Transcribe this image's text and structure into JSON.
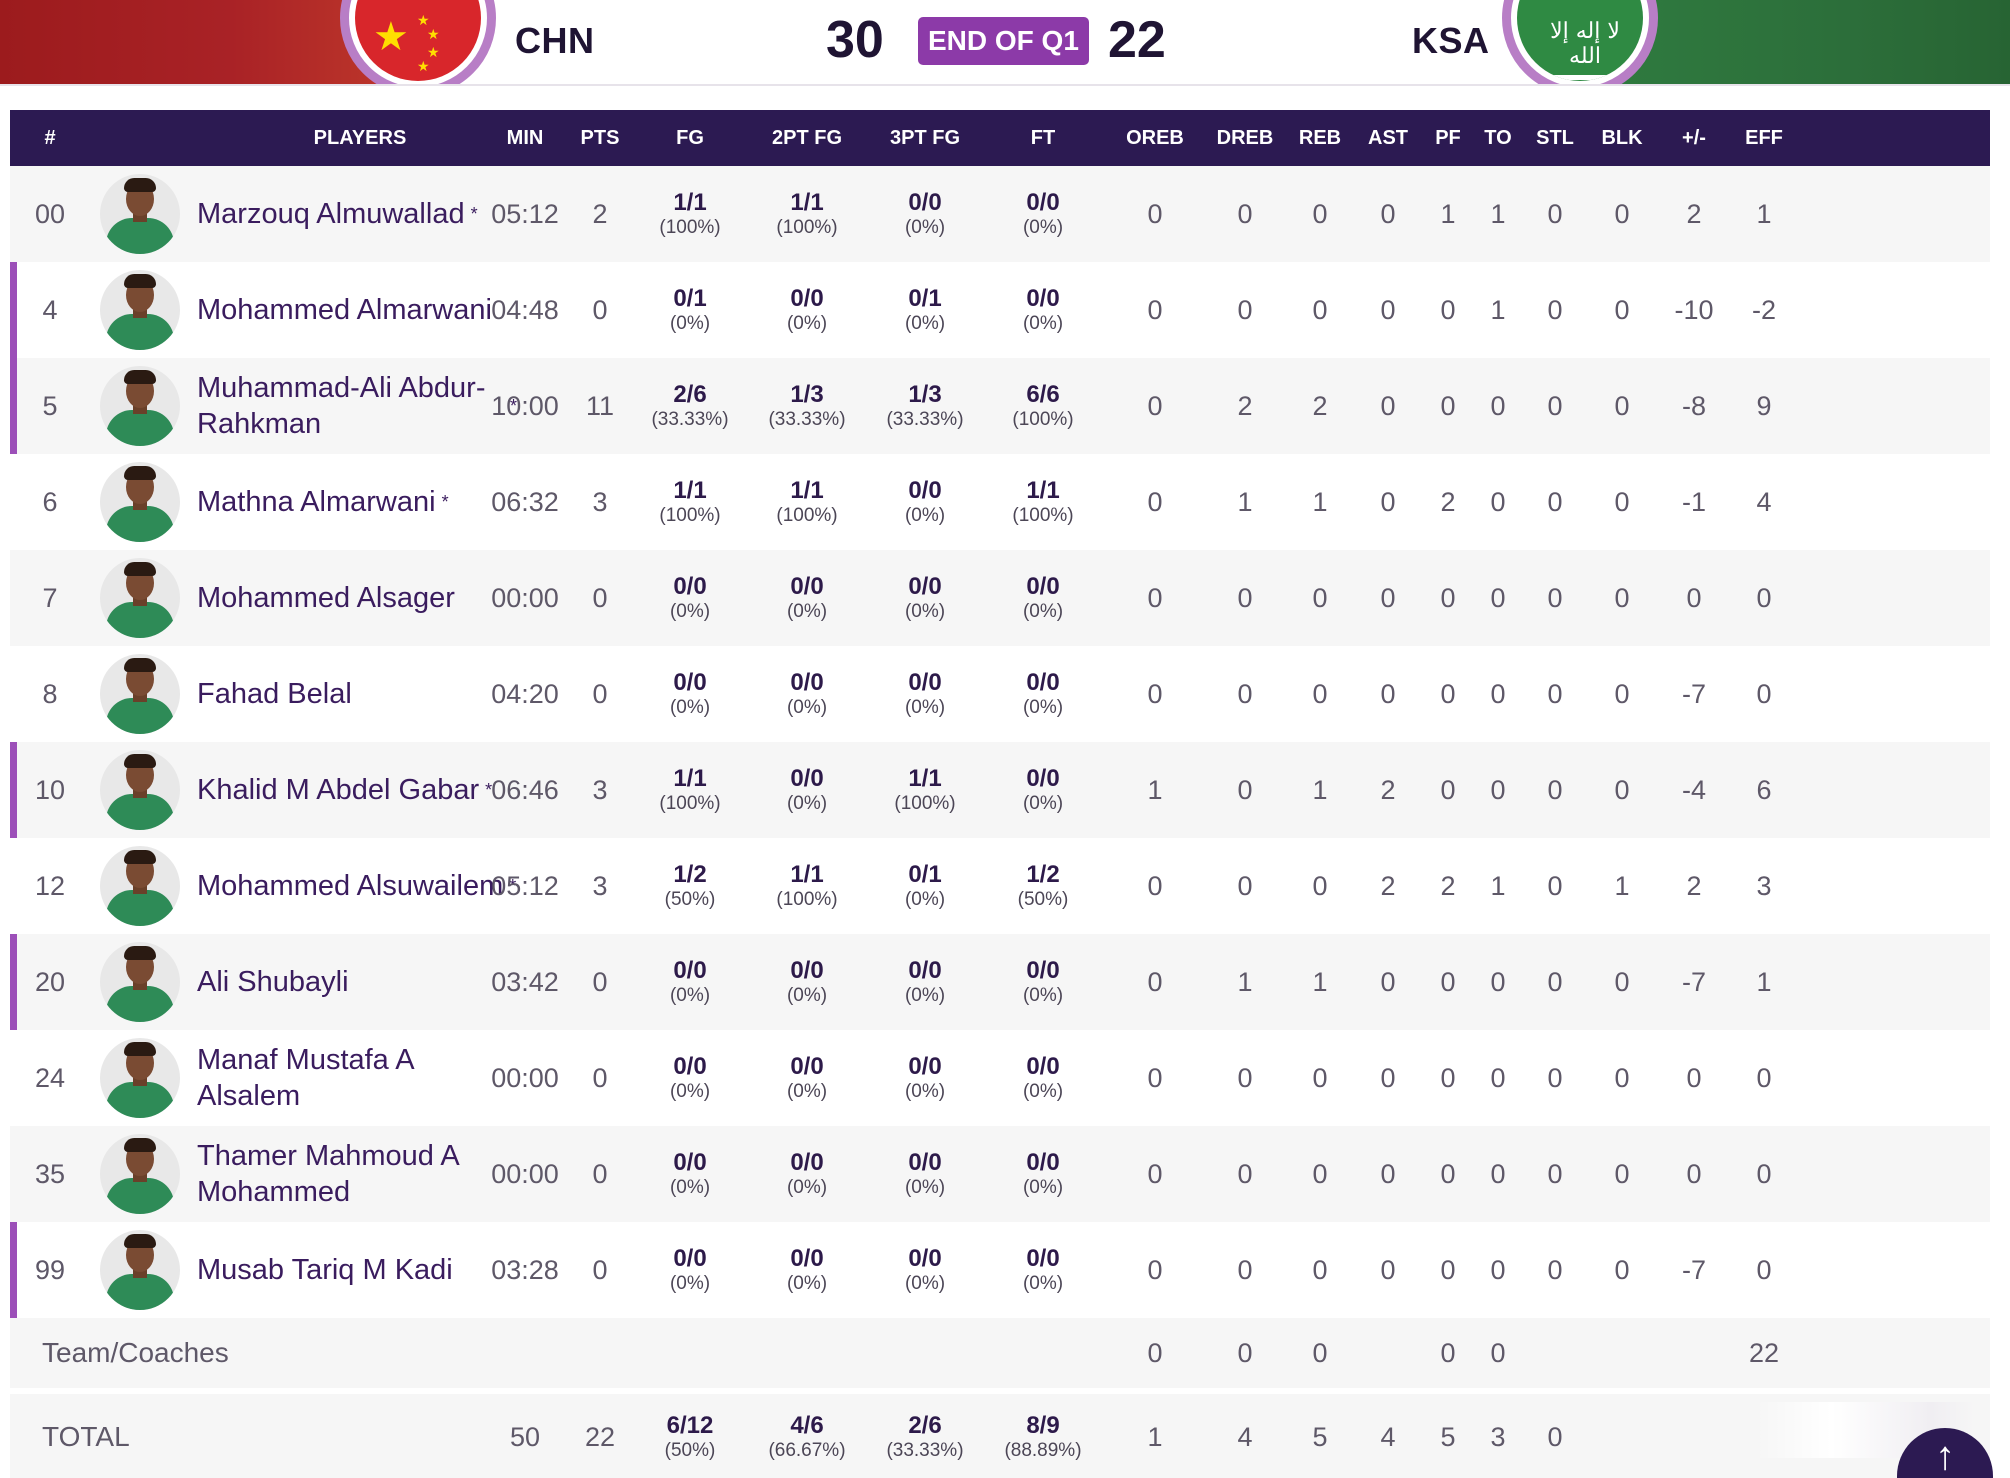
{
  "header": {
    "home": {
      "code": "CHN",
      "score": "30"
    },
    "period": "END OF Q1",
    "away": {
      "code": "KSA",
      "score": "22",
      "flag_script": "لا إله إلا الله"
    }
  },
  "table": {
    "columns": {
      "num": "#",
      "players": "PLAYERS",
      "min": "MIN",
      "pts": "PTS",
      "fg": "FG",
      "fg2": "2PT FG",
      "fg3": "3PT FG",
      "ft": "FT",
      "oreb": "OREB",
      "dreb": "DREB",
      "reb": "REB",
      "ast": "AST",
      "pf": "PF",
      "to": "TO",
      "stl": "STL",
      "blk": "BLK",
      "pm": "+/-",
      "eff": "EFF"
    },
    "rows": [
      {
        "num": "00",
        "name": "Marzouq Almuwallad",
        "starter": "*",
        "accent": false,
        "min": "05:12",
        "pts": "2",
        "fg": "1/1",
        "fg_pct": "(100%)",
        "fg2": "1/1",
        "fg2_pct": "(100%)",
        "fg3": "0/0",
        "fg3_pct": "(0%)",
        "ft": "0/0",
        "ft_pct": "(0%)",
        "oreb": "0",
        "dreb": "0",
        "reb": "0",
        "ast": "0",
        "pf": "1",
        "to": "1",
        "stl": "0",
        "blk": "0",
        "pm": "2",
        "eff": "1"
      },
      {
        "num": "4",
        "name": "Mohammed Almarwani",
        "starter": "",
        "accent": true,
        "min": "04:48",
        "pts": "0",
        "fg": "0/1",
        "fg_pct": "(0%)",
        "fg2": "0/0",
        "fg2_pct": "(0%)",
        "fg3": "0/1",
        "fg3_pct": "(0%)",
        "ft": "0/0",
        "ft_pct": "(0%)",
        "oreb": "0",
        "dreb": "0",
        "reb": "0",
        "ast": "0",
        "pf": "0",
        "to": "1",
        "stl": "0",
        "blk": "0",
        "pm": "-10",
        "eff": "-2"
      },
      {
        "num": "5",
        "name": "Muhammad-Ali Abdur-Rahkman",
        "starter": "*",
        "accent": true,
        "min": "10:00",
        "pts": "11",
        "fg": "2/6",
        "fg_pct": "(33.33%)",
        "fg2": "1/3",
        "fg2_pct": "(33.33%)",
        "fg3": "1/3",
        "fg3_pct": "(33.33%)",
        "ft": "6/6",
        "ft_pct": "(100%)",
        "oreb": "0",
        "dreb": "2",
        "reb": "2",
        "ast": "0",
        "pf": "0",
        "to": "0",
        "stl": "0",
        "blk": "0",
        "pm": "-8",
        "eff": "9"
      },
      {
        "num": "6",
        "name": "Mathna Almarwani",
        "starter": "*",
        "accent": false,
        "min": "06:32",
        "pts": "3",
        "fg": "1/1",
        "fg_pct": "(100%)",
        "fg2": "1/1",
        "fg2_pct": "(100%)",
        "fg3": "0/0",
        "fg3_pct": "(0%)",
        "ft": "1/1",
        "ft_pct": "(100%)",
        "oreb": "0",
        "dreb": "1",
        "reb": "1",
        "ast": "0",
        "pf": "2",
        "to": "0",
        "stl": "0",
        "blk": "0",
        "pm": "-1",
        "eff": "4"
      },
      {
        "num": "7",
        "name": "Mohammed Alsager",
        "starter": "",
        "accent": false,
        "min": "00:00",
        "pts": "0",
        "fg": "0/0",
        "fg_pct": "(0%)",
        "fg2": "0/0",
        "fg2_pct": "(0%)",
        "fg3": "0/0",
        "fg3_pct": "(0%)",
        "ft": "0/0",
        "ft_pct": "(0%)",
        "oreb": "0",
        "dreb": "0",
        "reb": "0",
        "ast": "0",
        "pf": "0",
        "to": "0",
        "stl": "0",
        "blk": "0",
        "pm": "0",
        "eff": "0"
      },
      {
        "num": "8",
        "name": "Fahad Belal",
        "starter": "",
        "accent": false,
        "min": "04:20",
        "pts": "0",
        "fg": "0/0",
        "fg_pct": "(0%)",
        "fg2": "0/0",
        "fg2_pct": "(0%)",
        "fg3": "0/0",
        "fg3_pct": "(0%)",
        "ft": "0/0",
        "ft_pct": "(0%)",
        "oreb": "0",
        "dreb": "0",
        "reb": "0",
        "ast": "0",
        "pf": "0",
        "to": "0",
        "stl": "0",
        "blk": "0",
        "pm": "-7",
        "eff": "0"
      },
      {
        "num": "10",
        "name": "Khalid M Abdel Gabar",
        "starter": "*",
        "accent": true,
        "min": "06:46",
        "pts": "3",
        "fg": "1/1",
        "fg_pct": "(100%)",
        "fg2": "0/0",
        "fg2_pct": "(0%)",
        "fg3": "1/1",
        "fg3_pct": "(100%)",
        "ft": "0/0",
        "ft_pct": "(0%)",
        "oreb": "1",
        "dreb": "0",
        "reb": "1",
        "ast": "2",
        "pf": "0",
        "to": "0",
        "stl": "0",
        "blk": "0",
        "pm": "-4",
        "eff": "6"
      },
      {
        "num": "12",
        "name": "Mohammed Alsuwailem",
        "starter": "*",
        "accent": false,
        "min": "05:12",
        "pts": "3",
        "fg": "1/2",
        "fg_pct": "(50%)",
        "fg2": "1/1",
        "fg2_pct": "(100%)",
        "fg3": "0/1",
        "fg3_pct": "(0%)",
        "ft": "1/2",
        "ft_pct": "(50%)",
        "oreb": "0",
        "dreb": "0",
        "reb": "0",
        "ast": "2",
        "pf": "2",
        "to": "1",
        "stl": "0",
        "blk": "1",
        "pm": "2",
        "eff": "3"
      },
      {
        "num": "20",
        "name": "Ali Shubayli",
        "starter": "",
        "accent": true,
        "min": "03:42",
        "pts": "0",
        "fg": "0/0",
        "fg_pct": "(0%)",
        "fg2": "0/0",
        "fg2_pct": "(0%)",
        "fg3": "0/0",
        "fg3_pct": "(0%)",
        "ft": "0/0",
        "ft_pct": "(0%)",
        "oreb": "0",
        "dreb": "1",
        "reb": "1",
        "ast": "0",
        "pf": "0",
        "to": "0",
        "stl": "0",
        "blk": "0",
        "pm": "-7",
        "eff": "1"
      },
      {
        "num": "24",
        "name": "Manaf Mustafa A Alsalem",
        "starter": "",
        "accent": false,
        "min": "00:00",
        "pts": "0",
        "fg": "0/0",
        "fg_pct": "(0%)",
        "fg2": "0/0",
        "fg2_pct": "(0%)",
        "fg3": "0/0",
        "fg3_pct": "(0%)",
        "ft": "0/0",
        "ft_pct": "(0%)",
        "oreb": "0",
        "dreb": "0",
        "reb": "0",
        "ast": "0",
        "pf": "0",
        "to": "0",
        "stl": "0",
        "blk": "0",
        "pm": "0",
        "eff": "0"
      },
      {
        "num": "35",
        "name": "Thamer Mahmoud A Mohammed",
        "starter": "",
        "accent": false,
        "min": "00:00",
        "pts": "0",
        "fg": "0/0",
        "fg_pct": "(0%)",
        "fg2": "0/0",
        "fg2_pct": "(0%)",
        "fg3": "0/0",
        "fg3_pct": "(0%)",
        "ft": "0/0",
        "ft_pct": "(0%)",
        "oreb": "0",
        "dreb": "0",
        "reb": "0",
        "ast": "0",
        "pf": "0",
        "to": "0",
        "stl": "0",
        "blk": "0",
        "pm": "0",
        "eff": "0"
      },
      {
        "num": "99",
        "name": "Musab Tariq M Kadi",
        "starter": "",
        "accent": true,
        "min": "03:28",
        "pts": "0",
        "fg": "0/0",
        "fg_pct": "(0%)",
        "fg2": "0/0",
        "fg2_pct": "(0%)",
        "fg3": "0/0",
        "fg3_pct": "(0%)",
        "ft": "0/0",
        "ft_pct": "(0%)",
        "oreb": "0",
        "dreb": "0",
        "reb": "0",
        "ast": "0",
        "pf": "0",
        "to": "0",
        "stl": "0",
        "blk": "0",
        "pm": "-7",
        "eff": "0"
      }
    ],
    "team_row": {
      "label": "Team/Coaches",
      "oreb": "0",
      "dreb": "0",
      "reb": "0",
      "pf": "0",
      "to": "0",
      "eff": "22"
    },
    "total_row": {
      "label": "TOTAL",
      "min": "50",
      "pts": "22",
      "fg": "6/12",
      "fg_pct": "(50%)",
      "fg2": "4/6",
      "fg2_pct": "(66.67%)",
      "fg3": "2/6",
      "fg3_pct": "(33.33%)",
      "ft": "8/9",
      "ft_pct": "(88.89%)",
      "oreb": "1",
      "dreb": "4",
      "reb": "5",
      "ast": "4",
      "pf": "5",
      "to": "3",
      "stl": "0"
    }
  },
  "scroll_top_icon": "arrow-up-icon",
  "colors": {
    "header_bg": "#2c1a52",
    "period_badge": "#8c3aa8",
    "row_accent": "#9c4fb8",
    "home_band": "#a92226",
    "away_band": "#2c6e3a",
    "player_name": "#3a1c5e",
    "jersey": "#2e8b57"
  }
}
